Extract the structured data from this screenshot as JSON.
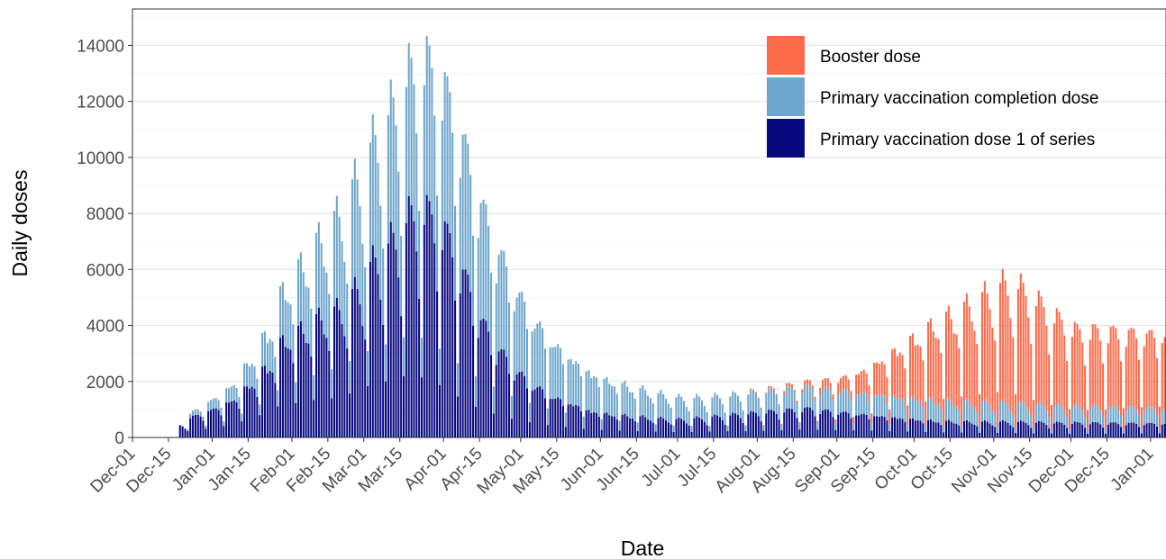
{
  "chart_data": {
    "type": "bar",
    "stacked": true,
    "title": "",
    "xlabel": "Date",
    "ylabel": "Daily doses",
    "ylim": [
      0,
      15300
    ],
    "yticks": [
      0,
      2000,
      4000,
      6000,
      8000,
      10000,
      12000,
      14000
    ],
    "xticks": [
      "Dec-01",
      "Dec-15",
      "Jan-01",
      "Jan-15",
      "Feb-01",
      "Feb-15",
      "Mar-01",
      "Mar-15",
      "Apr-01",
      "Apr-15",
      "May-01",
      "May-15",
      "Jun-01",
      "Jun-15",
      "Jul-01",
      "Jul-15",
      "Aug-01",
      "Aug-15",
      "Sep-01",
      "Sep-15",
      "Oct-01",
      "Oct-15",
      "Nov-01",
      "Nov-15",
      "Dec-01",
      "Dec-15",
      "Jan-01"
    ],
    "x_start": "Dec-01",
    "x_end": "Jan-07",
    "grid": true,
    "legend_position": "top-right",
    "series_order": [
      "Booster dose",
      "Primary vaccination completion dose",
      "Primary vaccination dose 1 of series"
    ],
    "colors": {
      "Booster dose": "#fb6a4a",
      "Primary vaccination completion dose": "#6ea6cd",
      "Primary vaccination dose 1 of series": "#08087f"
    },
    "series": [
      {
        "name": "Primary vaccination dose 1 of series",
        "values_weekly_avg": [
          0,
          0,
          350,
          650,
          850,
          1100,
          1550,
          2100,
          2900,
          3200,
          3500,
          3700,
          4200,
          5000,
          5600,
          6300,
          6400,
          5800,
          4600,
          3300,
          2500,
          1900,
          1500,
          1200,
          1000,
          800,
          700,
          650,
          600,
          550,
          520,
          550,
          600,
          650,
          700,
          750,
          800,
          850,
          800,
          750,
          700,
          650,
          600,
          550,
          500,
          480,
          460,
          450,
          450,
          440,
          430,
          420,
          420
        ]
      },
      {
        "name": "Primary vaccination completion dose",
        "values_weekly_avg": [
          0,
          0,
          0,
          150,
          300,
          450,
          700,
          1000,
          1500,
          1900,
          2300,
          2700,
          3100,
          3400,
          3700,
          4000,
          4200,
          4000,
          3700,
          3300,
          2800,
          2300,
          1900,
          1600,
          1350,
          1150,
          1000,
          900,
          800,
          700,
          620,
          580,
          560,
          560,
          570,
          580,
          600,
          620,
          640,
          650,
          650,
          650,
          640,
          630,
          620,
          600,
          580,
          560,
          540,
          520,
          500,
          480,
          460
        ]
      },
      {
        "name": "Booster dose",
        "values_weekly_avg": [
          0,
          0,
          0,
          0,
          0,
          0,
          0,
          0,
          0,
          0,
          0,
          0,
          0,
          0,
          0,
          0,
          0,
          0,
          0,
          0,
          0,
          0,
          0,
          0,
          0,
          0,
          0,
          0,
          0,
          0,
          0,
          0,
          0,
          0,
          30,
          60,
          100,
          150,
          250,
          400,
          650,
          1000,
          1400,
          1800,
          2200,
          2500,
          2800,
          3100,
          3400,
          3300,
          2900,
          2500,
          2200
        ]
      }
    ]
  }
}
